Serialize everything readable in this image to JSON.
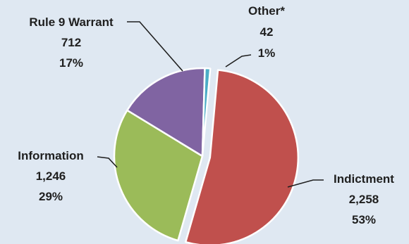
{
  "chart_data": {
    "type": "pie",
    "start_position": "top, clockwise",
    "legend": "none",
    "slices": [
      {
        "label": "Indictment",
        "value_text": "2,258",
        "percent_text": "53%",
        "value": 2258,
        "color": "#c0504d",
        "exploded": true
      },
      {
        "label": "Information",
        "value_text": "1,246",
        "percent_text": "29%",
        "value": 1246,
        "color": "#9bbb59",
        "exploded": false
      },
      {
        "label": "Rule 9 Warrant",
        "value_text": "712",
        "percent_text": "17%",
        "value": 712,
        "color": "#8064a2",
        "exploded": false
      },
      {
        "label": "Other*",
        "value_text": "42",
        "percent_text": "1%",
        "value": 42,
        "color": "#4bacc6",
        "exploded": false
      }
    ]
  }
}
